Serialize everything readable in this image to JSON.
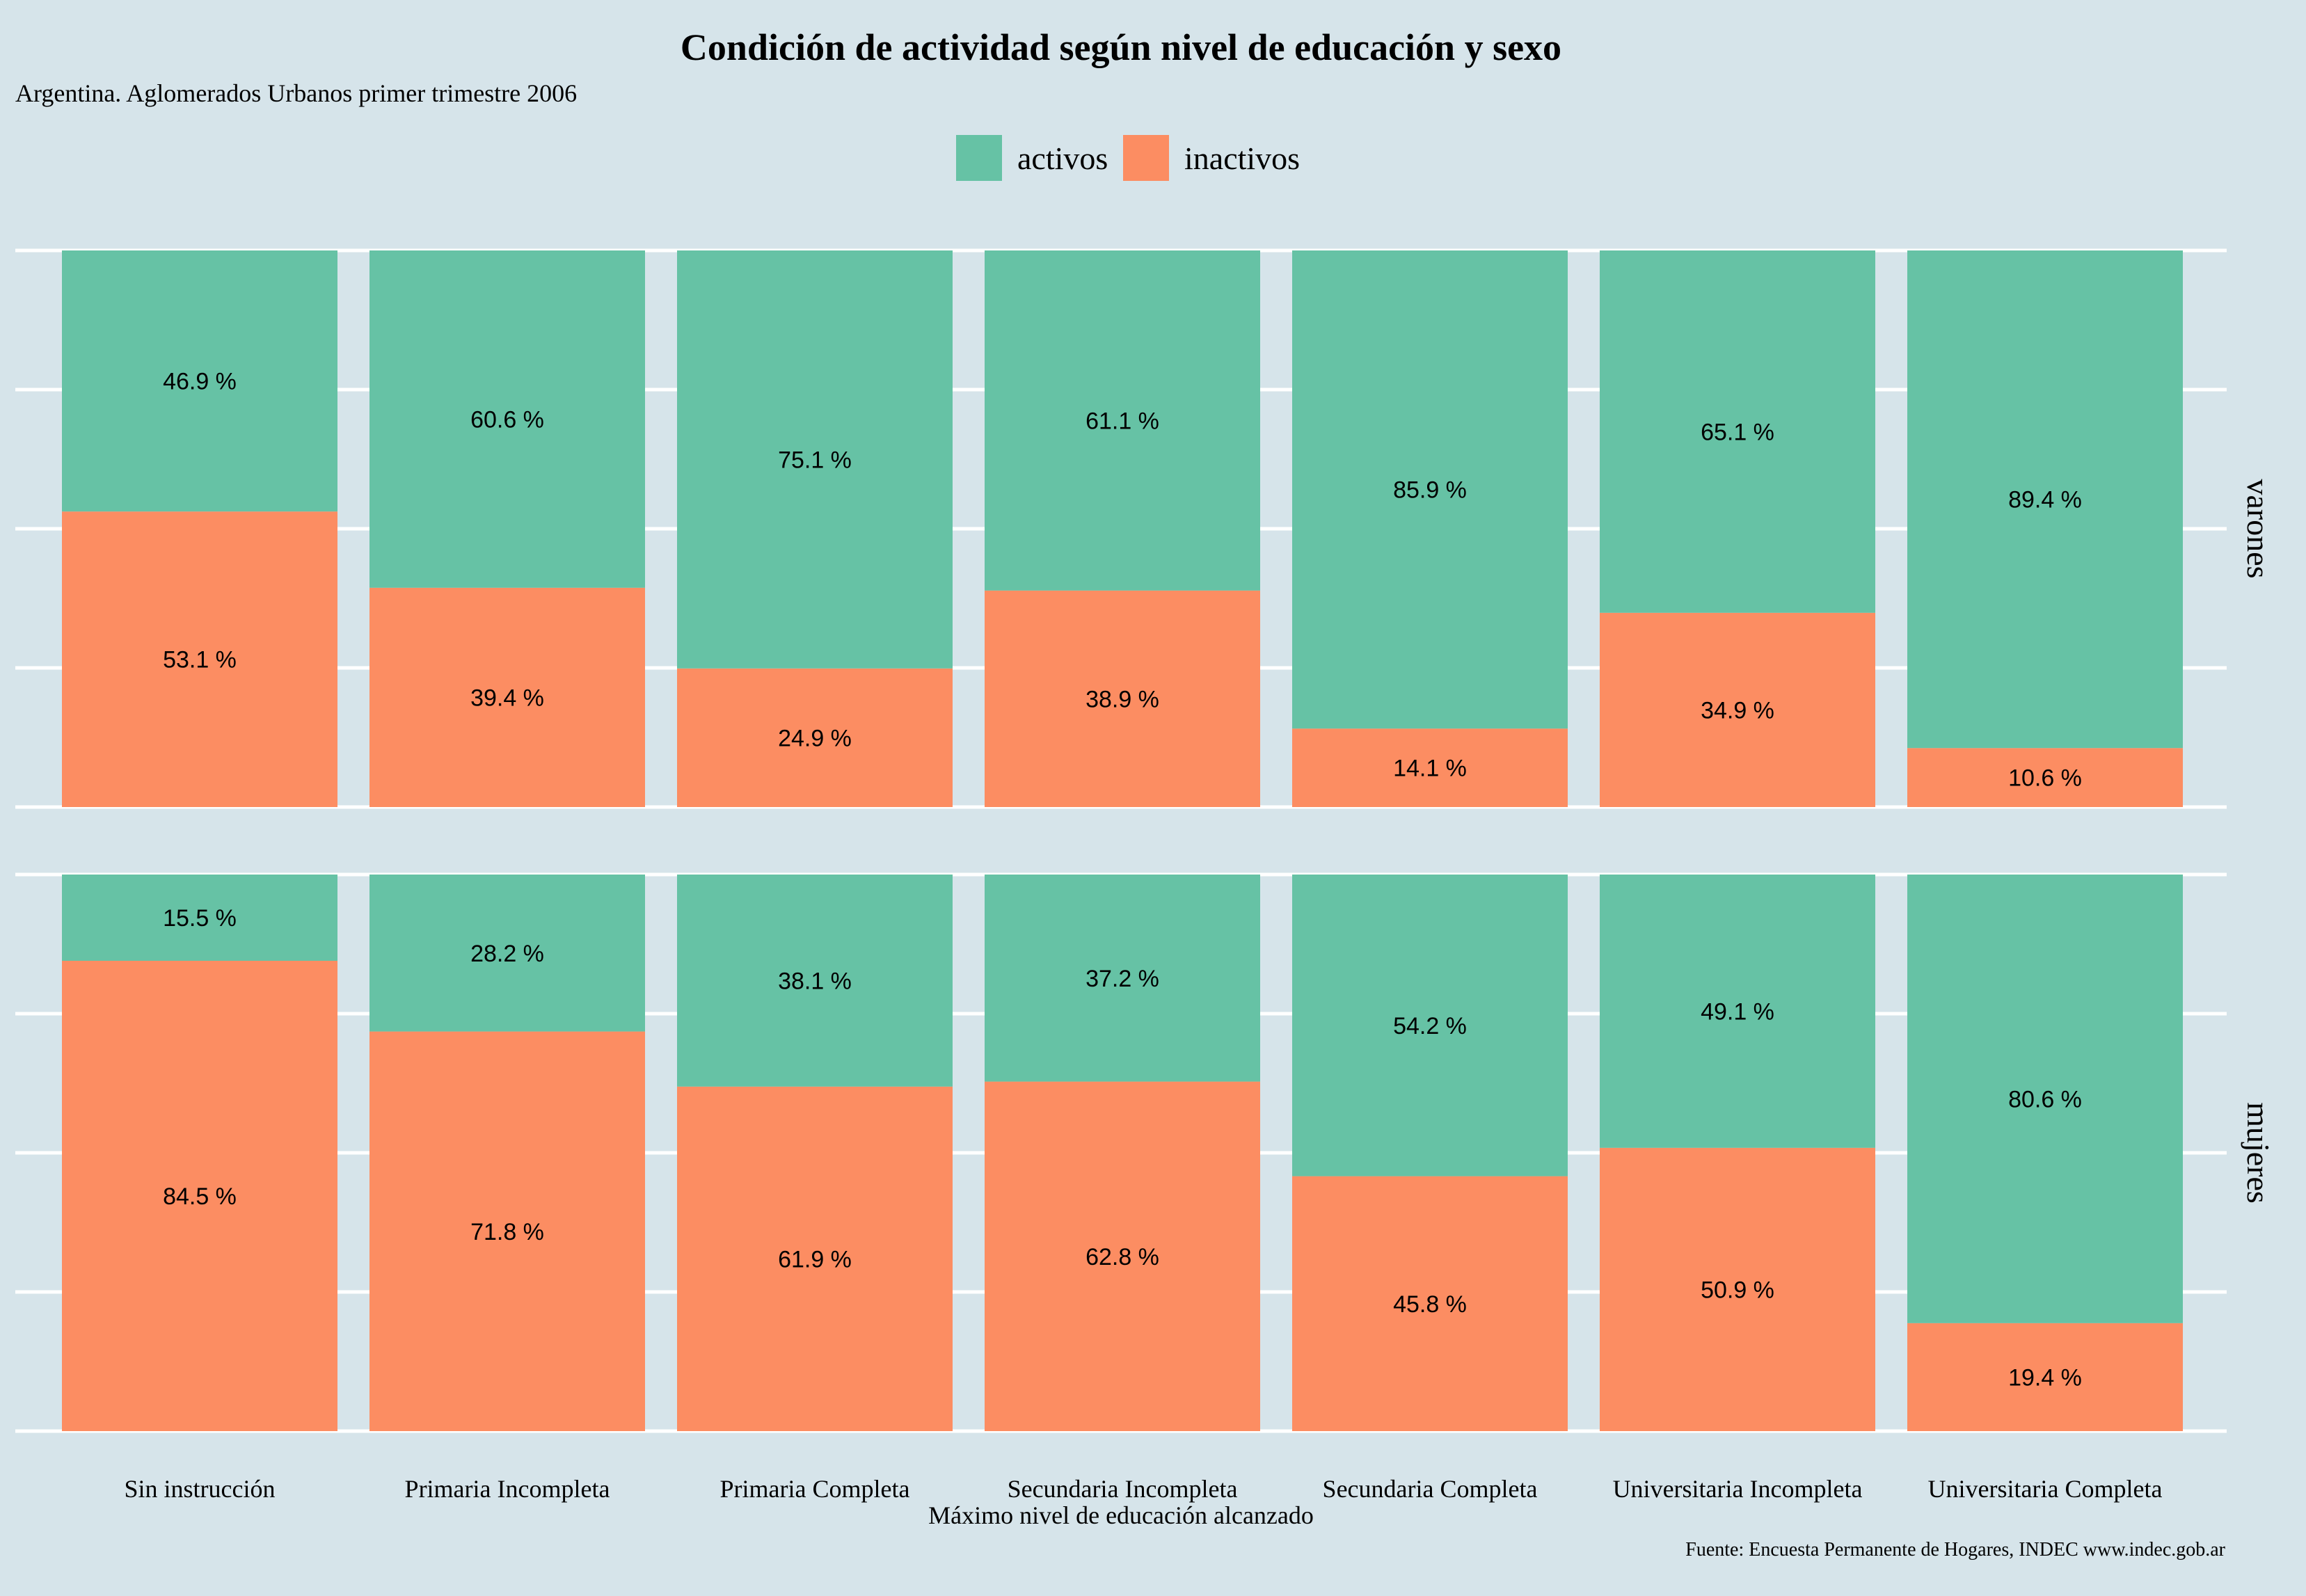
{
  "chart_data": {
    "type": "bar",
    "stacked": true,
    "title": "Condición de actividad según nivel de educación y sexo",
    "subtitle": "Argentina. Aglomerados Urbanos primer trimestre 2006",
    "xlabel": "Máximo nivel de educación alcanzado",
    "caption": "Fuente: Encuesta Permanente de Hogares, INDEC www.indec.gob.ar",
    "legend_position": "top",
    "grid": true,
    "ylim": [
      0,
      100
    ],
    "categories": [
      "Sin instrucción",
      "Primaria Incompleta",
      "Primaria Completa",
      "Secundaria Incompleta",
      "Secundaria Completa",
      "Universitaria Incompleta",
      "Universitaria Completa"
    ],
    "series_legend": [
      {
        "name": "activos",
        "color": "#66c2a5"
      },
      {
        "name": "inactivos",
        "color": "#fc8d62"
      }
    ],
    "facets": [
      {
        "label": "varones",
        "series": [
          {
            "name": "activos",
            "values": [
              46.9,
              60.6,
              75.1,
              61.1,
              85.9,
              65.1,
              89.4
            ],
            "labels": [
              "46.9 %",
              "60.6 %",
              "75.1 %",
              "61.1 %",
              "85.9 %",
              "65.1 %",
              "89.4 %"
            ]
          },
          {
            "name": "inactivos",
            "values": [
              53.1,
              39.4,
              24.9,
              38.9,
              14.1,
              34.9,
              10.6
            ],
            "labels": [
              "53.1 %",
              "39.4 %",
              "24.9 %",
              "38.9 %",
              "14.1 %",
              "34.9 %",
              "10.6 %"
            ]
          }
        ]
      },
      {
        "label": "mujeres",
        "series": [
          {
            "name": "activos",
            "values": [
              15.5,
              28.2,
              38.1,
              37.2,
              54.2,
              49.1,
              80.6
            ],
            "labels": [
              "15.5 %",
              "28.2 %",
              "38.1 %",
              "37.2 %",
              "54.2 %",
              "49.1 %",
              "80.6 %"
            ]
          },
          {
            "name": "inactivos",
            "values": [
              84.5,
              71.8,
              61.9,
              62.8,
              45.8,
              50.9,
              19.4
            ],
            "labels": [
              "84.5 %",
              "71.8 %",
              "61.9 %",
              "62.8 %",
              "45.8 %",
              "50.9 %",
              "19.4 %"
            ]
          }
        ]
      }
    ]
  }
}
